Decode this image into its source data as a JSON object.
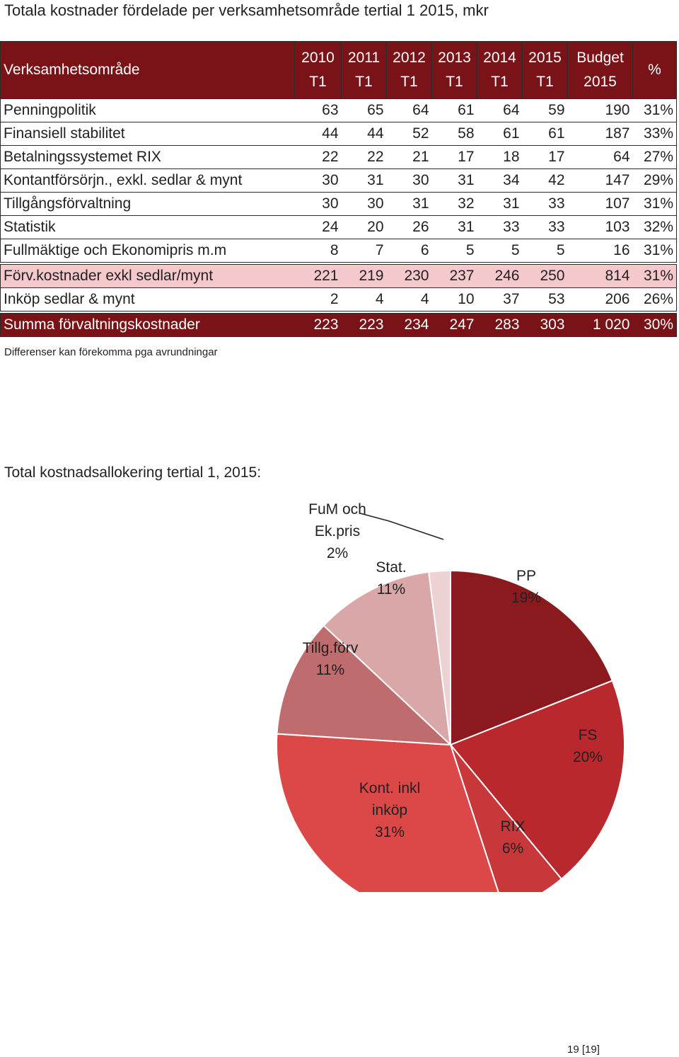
{
  "title": "Totala kostnader fördelade per verksamhetsområde tertial 1 2015, mkr",
  "table": {
    "header": {
      "label": "Verksamhetsområde",
      "columns": [
        {
          "line1": "2010",
          "line2": "T1"
        },
        {
          "line1": "2011",
          "line2": "T1"
        },
        {
          "line1": "2012",
          "line2": "T1"
        },
        {
          "line1": "2013",
          "line2": "T1"
        },
        {
          "line1": "2014",
          "line2": "T1"
        },
        {
          "line1": "2015",
          "line2": "T1"
        },
        {
          "line1": "Budget",
          "line2": "2015"
        },
        {
          "line1": "%",
          "line2": ""
        }
      ]
    },
    "rows": [
      {
        "label": "Penningpolitik",
        "values": [
          "63",
          "65",
          "64",
          "61",
          "64",
          "59",
          "190",
          "31%"
        ]
      },
      {
        "label": "Finansiell stabilitet",
        "values": [
          "44",
          "44",
          "52",
          "58",
          "61",
          "61",
          "187",
          "33%"
        ]
      },
      {
        "label": "Betalningssystemet RIX",
        "values": [
          "22",
          "22",
          "21",
          "17",
          "18",
          "17",
          "64",
          "27%"
        ]
      },
      {
        "label": "Kontantförsörjn., exkl. sedlar & mynt",
        "values": [
          "30",
          "31",
          "30",
          "31",
          "34",
          "42",
          "147",
          "29%"
        ]
      },
      {
        "label": "Tillgångsförvaltning",
        "values": [
          "30",
          "30",
          "31",
          "32",
          "31",
          "33",
          "107",
          "31%"
        ]
      },
      {
        "label": "Statistik",
        "values": [
          "24",
          "20",
          "26",
          "31",
          "33",
          "33",
          "103",
          "32%"
        ]
      },
      {
        "label": "Fullmäktige och Ekonomipris m.m",
        "values": [
          "8",
          "7",
          "6",
          "5",
          "5",
          "5",
          "16",
          "31%"
        ]
      }
    ],
    "subtotal": {
      "label": "Förv.kostnader exkl sedlar/mynt",
      "values": [
        "221",
        "219",
        "230",
        "237",
        "246",
        "250",
        "814",
        "31%"
      ]
    },
    "purchase": {
      "label": "Inköp sedlar & mynt",
      "values": [
        "2",
        "4",
        "4",
        "10",
        "37",
        "53",
        "206",
        "26%"
      ]
    },
    "total": {
      "label": "Summa förvaltningskostnader",
      "values": [
        "223",
        "223",
        "234",
        "247",
        "283",
        "303",
        "1 020",
        "30%"
      ]
    }
  },
  "footnote": "Differenser kan förekomma pga avrundningar",
  "pie_title": "Total kostnadsallokering tertial 1, 2015:",
  "page_number": "19 [19]",
  "chart_data": {
    "type": "pie",
    "start_angle_deg": 0,
    "direction": "clockwise",
    "slices": [
      {
        "label_lines": [
          "PP",
          "19%"
        ],
        "value": 19,
        "color": "#8b1a1f"
      },
      {
        "label_lines": [
          "FS",
          "20%"
        ],
        "value": 20,
        "color": "#b8282d"
      },
      {
        "label_lines": [
          "RIX",
          "6%"
        ],
        "value": 6,
        "color": "#c8373a"
      },
      {
        "label_lines": [
          "Kont. inkl",
          "inköp",
          "31%"
        ],
        "value": 31,
        "color": "#dc4747"
      },
      {
        "label_lines": [
          "Tillg.förv",
          "11%"
        ],
        "value": 11,
        "color": "#bf6c6e"
      },
      {
        "label_lines": [
          "Stat.",
          "11%"
        ],
        "value": 11,
        "color": "#d9a7a8"
      },
      {
        "label_lines": [
          "FuM och",
          "Ek.pris",
          "2%"
        ],
        "value": 2,
        "color": "#ecd2d3"
      }
    ]
  }
}
